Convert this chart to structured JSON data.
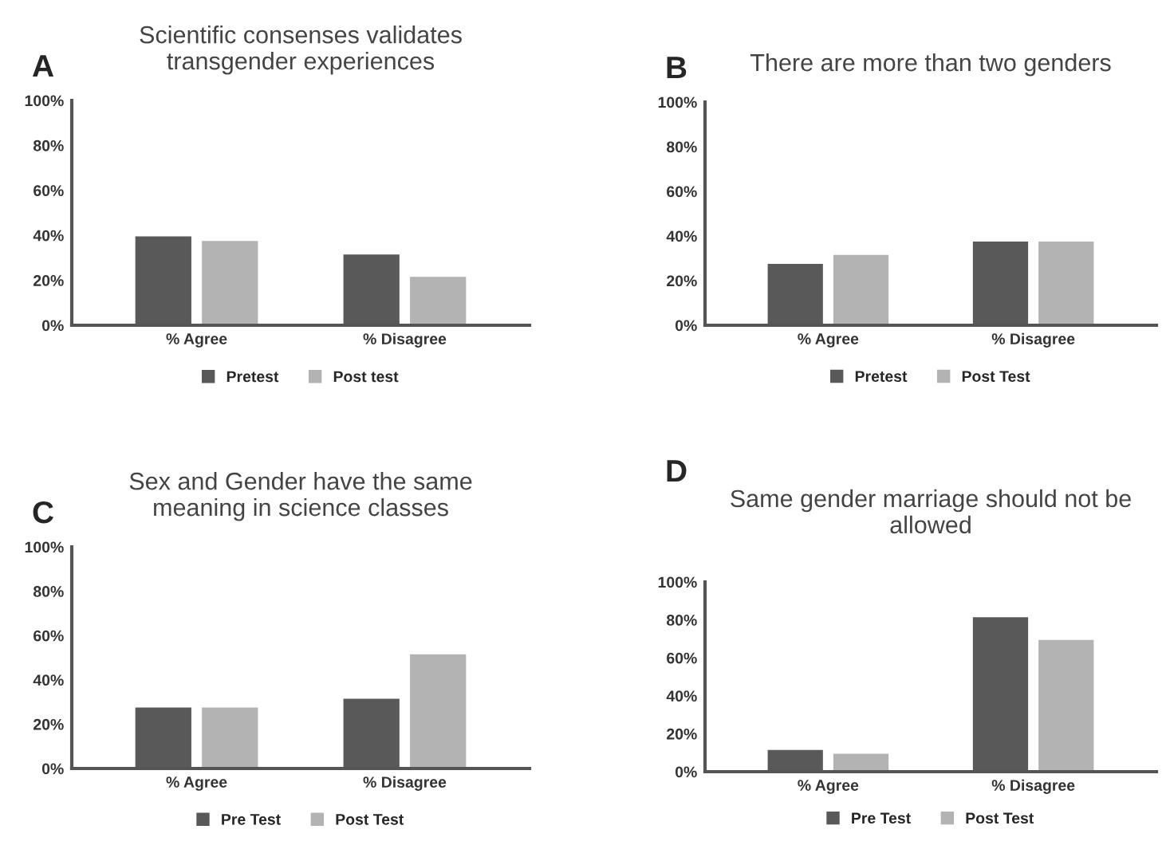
{
  "chart_data": [
    {
      "type": "bar",
      "title": "Scientific consenses validates\ntransgender experiences",
      "annotations": [
        "A"
      ],
      "categories": [
        "% Agree",
        "% Disagree"
      ],
      "series": [
        {
          "name": "Pretest",
          "color": "#595959",
          "values": [
            40,
            32
          ]
        },
        {
          "name": "Post test",
          "color": "#b3b3b3",
          "values": [
            38,
            22
          ]
        }
      ],
      "ylim": [
        0,
        100
      ],
      "yticks": [
        {
          "value": 0,
          "label": "0%"
        },
        {
          "value": 20,
          "label": "20%"
        },
        {
          "value": 40,
          "label": "40%"
        },
        {
          "value": 60,
          "label": "60%"
        },
        {
          "value": 80,
          "label": "80%"
        },
        {
          "value": 100,
          "label": "100%"
        }
      ],
      "grid": false,
      "legend": "bottom"
    },
    {
      "type": "bar",
      "title": "There are more than two genders",
      "annotations": [
        "B"
      ],
      "categories": [
        "% Agree",
        "% Disagree"
      ],
      "series": [
        {
          "name": "Pretest",
          "color": "#595959",
          "values": [
            28,
            38
          ]
        },
        {
          "name": "Post Test",
          "color": "#b3b3b3",
          "values": [
            32,
            38
          ]
        }
      ],
      "ylim": [
        0,
        100
      ],
      "yticks": [
        {
          "value": 0,
          "label": "0%"
        },
        {
          "value": 20,
          "label": "20%"
        },
        {
          "value": 40,
          "label": "40%"
        },
        {
          "value": 60,
          "label": "60%"
        },
        {
          "value": 80,
          "label": "80%"
        },
        {
          "value": 100,
          "label": "100%"
        }
      ],
      "grid": false,
      "legend": "bottom"
    },
    {
      "type": "bar",
      "title": "Sex and Gender have the same\nmeaning in science classes",
      "annotations": [
        "C"
      ],
      "categories": [
        "% Agree",
        "% Disagree"
      ],
      "series": [
        {
          "name": "Pre Test",
          "color": "#595959",
          "values": [
            28,
            32
          ]
        },
        {
          "name": "Post Test",
          "color": "#b3b3b3",
          "values": [
            28,
            52
          ]
        }
      ],
      "ylim": [
        0,
        100
      ],
      "yticks": [
        {
          "value": 0,
          "label": "0%"
        },
        {
          "value": 20,
          "label": "20%"
        },
        {
          "value": 40,
          "label": "40%"
        },
        {
          "value": 60,
          "label": "60%"
        },
        {
          "value": 80,
          "label": "80%"
        },
        {
          "value": 100,
          "label": "100%"
        }
      ],
      "grid": false,
      "legend": "bottom"
    },
    {
      "type": "bar",
      "title": "Same gender marriage should not be\nallowed",
      "annotations": [
        "D"
      ],
      "categories": [
        "% Agree",
        "% Disagree"
      ],
      "series": [
        {
          "name": "Pre Test",
          "color": "#595959",
          "values": [
            12,
            82
          ]
        },
        {
          "name": "Post Test",
          "color": "#b3b3b3",
          "values": [
            10,
            70
          ]
        }
      ],
      "ylim": [
        0,
        100
      ],
      "yticks": [
        {
          "value": 0,
          "label": "0%"
        },
        {
          "value": 20,
          "label": "20%"
        },
        {
          "value": 40,
          "label": "40%"
        },
        {
          "value": 60,
          "label": "60%"
        },
        {
          "value": 80,
          "label": "80%"
        },
        {
          "value": 100,
          "label": "100%"
        }
      ],
      "grid": false,
      "legend": "bottom"
    }
  ]
}
